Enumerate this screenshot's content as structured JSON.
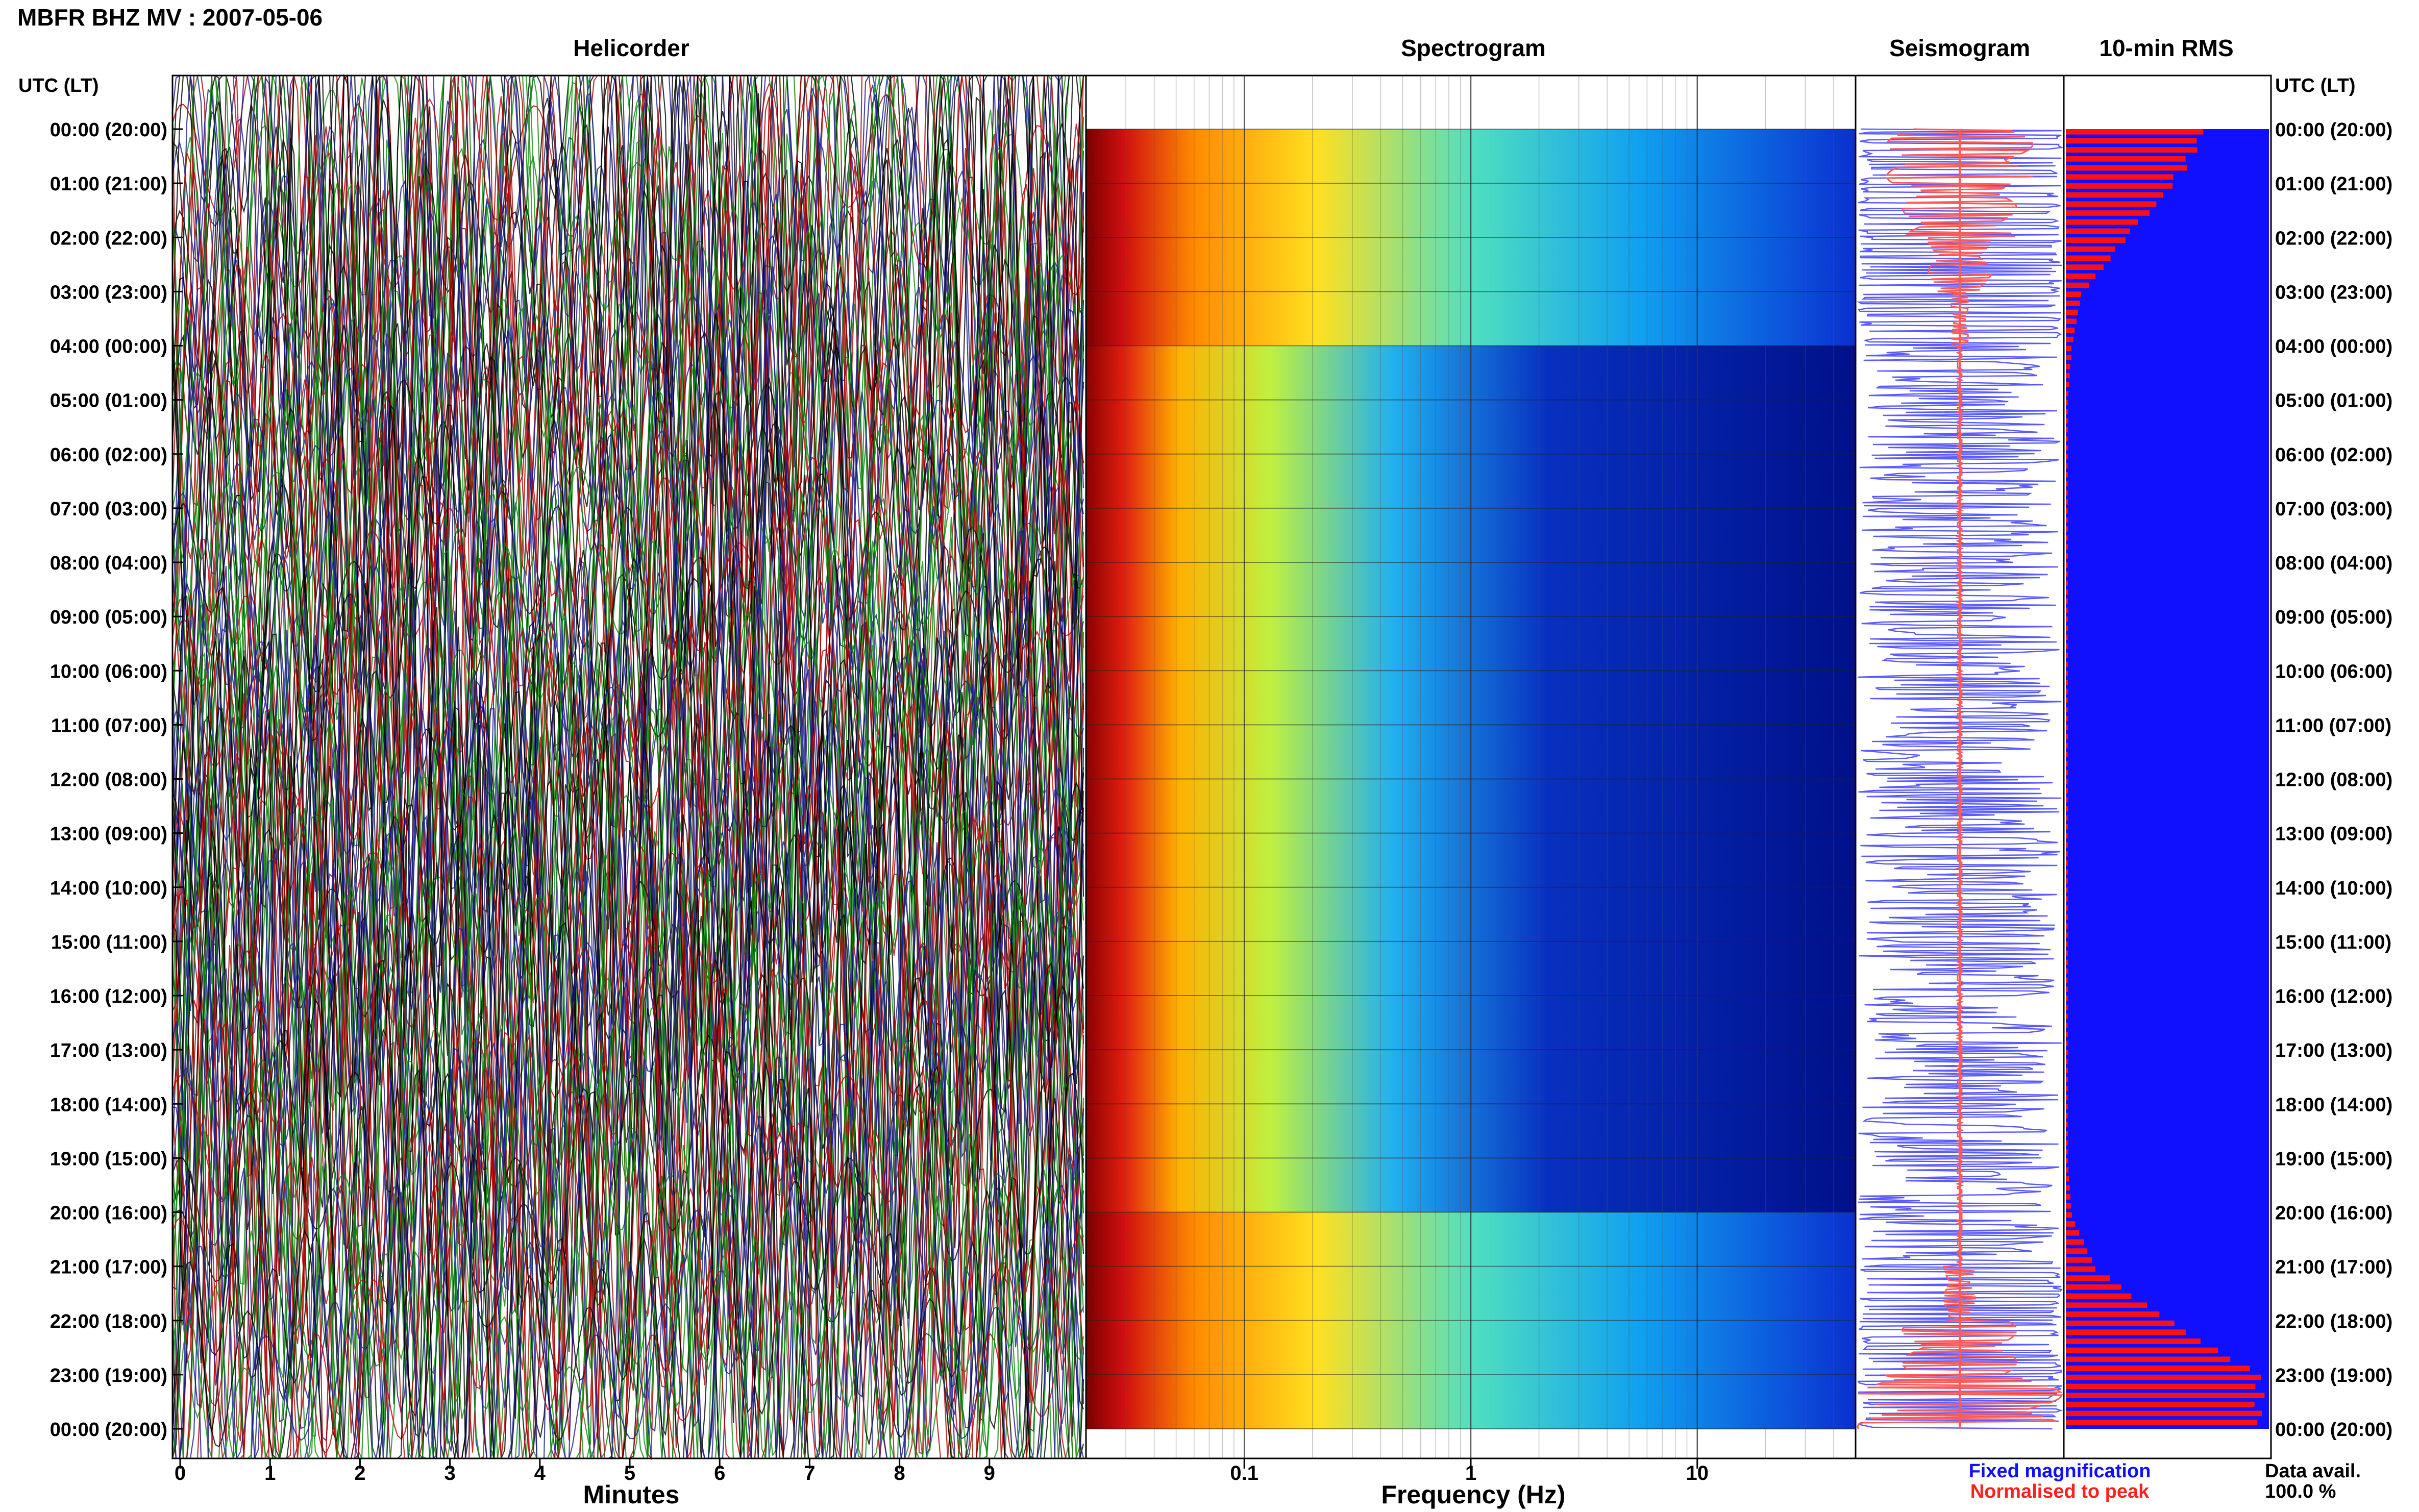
{
  "header": {
    "title": "MBFR BHZ MV : 2007-05-06"
  },
  "panels": {
    "helicorder": "Helicorder",
    "spectrogram": "Spectrogram",
    "seismogram": "Seismogram",
    "rms": "10-min RMS"
  },
  "axis_labels": {
    "left_header": "UTC (LT)",
    "right_header": "UTC (LT)",
    "minutes": "Minutes",
    "frequency": "Frequency (Hz)"
  },
  "legend": {
    "fixed": "Fixed magnification",
    "normalised": "Normalised to peak",
    "fixed_color": "#1010ff",
    "normalised_color": "#ff2020"
  },
  "data_avail": {
    "label": "Data avail.",
    "value": "100.0 %"
  },
  "colors": {
    "helicorder_traces": [
      "#000000",
      "#1a1a8c",
      "#b00000",
      "#0a8a0a"
    ],
    "seismogram_fixed": "#5a5aff",
    "seismogram_peak": "#ff5a5a",
    "rms_background": "#1010ff",
    "rms_bars": "#ff1010"
  },
  "chart_data": [
    {
      "type": "line",
      "title": "Helicorder",
      "xlabel": "Minutes",
      "x_ticks": [
        "0",
        "1",
        "2",
        "3",
        "4",
        "5",
        "6",
        "7",
        "8",
        "9"
      ],
      "xlim": [
        0,
        10
      ],
      "y_ticks": [
        "00:00 (20:00)",
        "01:00 (21:00)",
        "02:00 (22:00)",
        "03:00 (23:00)",
        "04:00 (00:00)",
        "05:00 (01:00)",
        "06:00 (02:00)",
        "07:00 (03:00)",
        "08:00 (04:00)",
        "09:00 (05:00)",
        "10:00 (06:00)",
        "11:00 (07:00)",
        "12:00 (08:00)",
        "13:00 (09:00)",
        "14:00 (10:00)",
        "15:00 (11:00)",
        "16:00 (12:00)",
        "17:00 (13:00)",
        "18:00 (14:00)",
        "19:00 (15:00)",
        "20:00 (16:00)",
        "21:00 (17:00)",
        "22:00 (18:00)",
        "23:00 (19:00)",
        "00:00 (20:00)"
      ]
    },
    {
      "type": "heatmap",
      "title": "Spectrogram",
      "xlabel": "Frequency (Hz)",
      "x_scale": "log",
      "x_ticks": [
        "0.1",
        "1",
        "10"
      ],
      "x_tick_values": [
        0.1,
        1,
        10
      ],
      "xlim": [
        0.02,
        50
      ],
      "colormap": "jet"
    },
    {
      "type": "line",
      "title": "Seismogram",
      "series": [
        {
          "name": "Fixed magnification",
          "color": "#5a5aff"
        },
        {
          "name": "Normalised to peak",
          "color": "#ff5a5a"
        }
      ]
    },
    {
      "type": "bar",
      "title": "10-min RMS",
      "hours": [
        0,
        1,
        2,
        3,
        4,
        5,
        6,
        7,
        8,
        9,
        10,
        11,
        12,
        13,
        14,
        15,
        16,
        17,
        18,
        19,
        20,
        21,
        22,
        23
      ],
      "values": [
        0.7,
        0.55,
        0.3,
        0.08,
        0.03,
        0.01,
        0.01,
        0.01,
        0.01,
        0.01,
        0.01,
        0.01,
        0.01,
        0.01,
        0.01,
        0.01,
        0.01,
        0.01,
        0.01,
        0.01,
        0.03,
        0.15,
        0.55,
        0.98
      ]
    }
  ]
}
